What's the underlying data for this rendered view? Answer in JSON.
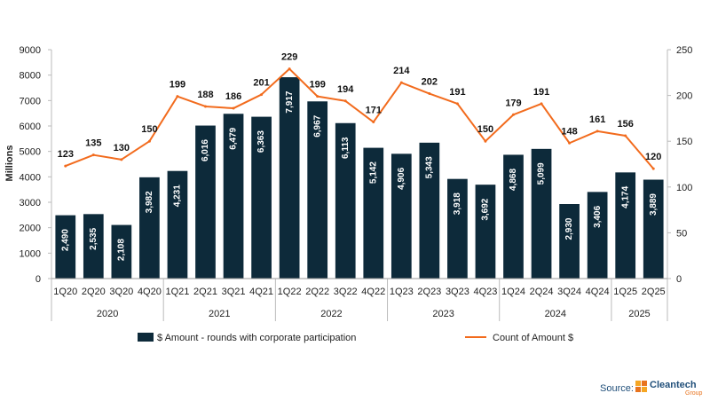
{
  "chart_data": {
    "type": "bar",
    "categories": [
      "1Q20",
      "2Q20",
      "3Q20",
      "4Q20",
      "1Q21",
      "2Q21",
      "3Q21",
      "4Q21",
      "1Q22",
      "2Q22",
      "3Q22",
      "4Q22",
      "1Q23",
      "2Q23",
      "3Q23",
      "4Q23",
      "1Q24",
      "2Q24",
      "3Q24",
      "4Q24",
      "1Q25",
      "2Q25"
    ],
    "year_groups": [
      {
        "year": "2020",
        "start": 0,
        "count": 4
      },
      {
        "year": "2021",
        "start": 4,
        "count": 4
      },
      {
        "year": "2022",
        "start": 8,
        "count": 4
      },
      {
        "year": "2023",
        "start": 12,
        "count": 4
      },
      {
        "year": "2024",
        "start": 16,
        "count": 4
      },
      {
        "year": "2025",
        "start": 20,
        "count": 2
      }
    ],
    "series": [
      {
        "name": "$ Amount - rounds with corporate participation",
        "type": "bar",
        "axis": "left",
        "color": "#0d2a3a",
        "values": [
          2490,
          2535,
          2108,
          3982,
          4231,
          6016,
          6479,
          6363,
          7917,
          6967,
          6113,
          5142,
          4906,
          5343,
          3918,
          3692,
          4868,
          5099,
          2930,
          3406,
          4174,
          3889
        ],
        "labels": [
          "2,490",
          "2,535",
          "2,108",
          "3,982",
          "4,231",
          "6,016",
          "6,479",
          "6,363",
          "7,917",
          "6,967",
          "6,113",
          "5,142",
          "4,906",
          "5,343",
          "3,918",
          "3,692",
          "4,868",
          "5,099",
          "2,930",
          "3,406",
          "4,174",
          "3,889"
        ]
      },
      {
        "name": "Count of Amount $",
        "type": "line",
        "axis": "right",
        "color": "#f26b1d",
        "values": [
          123,
          135,
          130,
          150,
          199,
          188,
          186,
          201,
          229,
          199,
          194,
          171,
          214,
          202,
          191,
          150,
          179,
          191,
          148,
          161,
          156,
          120
        ],
        "labels": [
          "123",
          "135",
          "130",
          "150",
          "199",
          "188",
          "186",
          "201",
          "229",
          "199",
          "194",
          "171",
          "214",
          "202",
          "191",
          "150",
          "179",
          "191",
          "148",
          "161",
          "156",
          "120"
        ]
      }
    ],
    "ylabel": "Millions",
    "ylim": [
      0,
      9000
    ],
    "yticks": [
      "0",
      "1000",
      "2000",
      "3000",
      "4000",
      "5000",
      "6000",
      "7000",
      "8000",
      "9000"
    ],
    "y2lim": [
      0,
      250
    ],
    "y2ticks": [
      "0",
      "50",
      "100",
      "150",
      "200",
      "250"
    ],
    "grid": false,
    "legend_position": "bottom"
  },
  "source": {
    "label": "Source:",
    "logo_name": "Cleantech",
    "logo_sub": "Group"
  }
}
